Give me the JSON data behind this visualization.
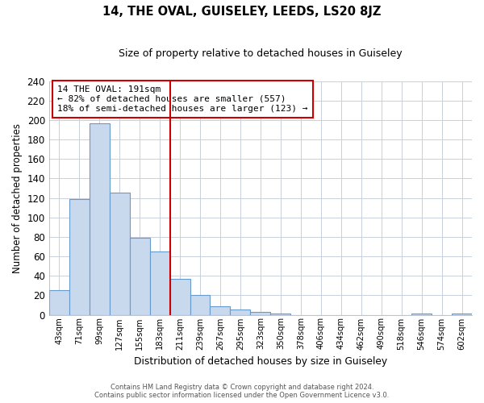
{
  "title": "14, THE OVAL, GUISELEY, LEEDS, LS20 8JZ",
  "subtitle": "Size of property relative to detached houses in Guiseley",
  "xlabel": "Distribution of detached houses by size in Guiseley",
  "ylabel": "Number of detached properties",
  "bar_color": "#c8d9ee",
  "bar_edge_color": "#6699cc",
  "vline_color": "#cc0000",
  "vline_x": 5.5,
  "categories": [
    "43sqm",
    "71sqm",
    "99sqm",
    "127sqm",
    "155sqm",
    "183sqm",
    "211sqm",
    "239sqm",
    "267sqm",
    "295sqm",
    "323sqm",
    "350sqm",
    "378sqm",
    "406sqm",
    "434sqm",
    "462sqm",
    "490sqm",
    "518sqm",
    "546sqm",
    "574sqm",
    "602sqm"
  ],
  "values": [
    25,
    119,
    197,
    125,
    79,
    65,
    37,
    20,
    9,
    5,
    3,
    1,
    0,
    0,
    0,
    0,
    0,
    0,
    1,
    0,
    1
  ],
  "ylim": [
    0,
    240
  ],
  "yticks": [
    0,
    20,
    40,
    60,
    80,
    100,
    120,
    140,
    160,
    180,
    200,
    220,
    240
  ],
  "annotation_title": "14 THE OVAL: 191sqm",
  "annotation_line1": "← 82% of detached houses are smaller (557)",
  "annotation_line2": "18% of semi-detached houses are larger (123) →",
  "footer_line1": "Contains HM Land Registry data © Crown copyright and database right 2024.",
  "footer_line2": "Contains public sector information licensed under the Open Government Licence v3.0.",
  "bg_color": "#ffffff",
  "grid_color": "#c8d0dc"
}
